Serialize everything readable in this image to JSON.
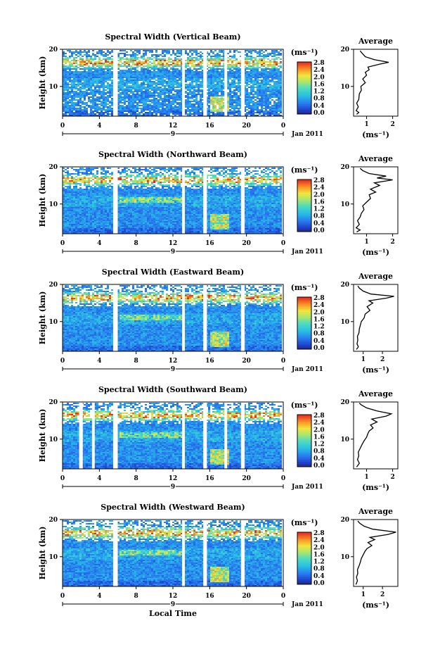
{
  "chart_data": [
    {
      "type": "heatmap",
      "title": "Spectral Width (Vertical Beam)",
      "ylabel": "Height (km)",
      "ylim": [
        2,
        20
      ],
      "xlim": [
        0,
        24
      ],
      "x_ticks": [
        "0",
        "4",
        "8",
        "12",
        "16",
        "20",
        "0"
      ],
      "y_ticks": [
        "10",
        "20"
      ],
      "date_day": "9",
      "date_label": "Jan 2011",
      "colorbar": {
        "unit": "(ms⁻¹)",
        "ticks": [
          "0.0",
          "0.4",
          "0.8",
          "1.2",
          "1.6",
          "2.0",
          "2.4",
          "2.8"
        ]
      },
      "gaps_hours": [
        [
          5.5,
          6.0
        ],
        [
          13.0,
          13.3
        ],
        [
          15.3,
          15.7
        ],
        [
          17.6,
          17.9
        ],
        [
          19.4,
          19.8
        ]
      ],
      "average_profile": {
        "title": "Average",
        "xlabel": "(ms⁻¹)",
        "x_ticks": [
          "1",
          "2"
        ],
        "y_ticks": [
          "10",
          "20"
        ],
        "xlim": [
          0.5,
          2.2
        ],
        "points": [
          [
            0.62,
            2.5
          ],
          [
            0.7,
            3.0
          ],
          [
            0.6,
            3.5
          ],
          [
            0.68,
            4.5
          ],
          [
            0.62,
            5.5
          ],
          [
            0.7,
            6.5
          ],
          [
            0.72,
            8.0
          ],
          [
            0.8,
            9.0
          ],
          [
            0.78,
            10.0
          ],
          [
            0.95,
            11.0
          ],
          [
            0.85,
            12.0
          ],
          [
            1.0,
            13.0
          ],
          [
            0.95,
            13.8
          ],
          [
            1.1,
            14.5
          ],
          [
            1.05,
            15.2
          ],
          [
            1.5,
            16.0
          ],
          [
            1.85,
            16.5
          ],
          [
            1.3,
            17.2
          ],
          [
            0.95,
            18.0
          ],
          [
            0.82,
            19.0
          ],
          [
            0.75,
            19.6
          ]
        ]
      }
    },
    {
      "type": "heatmap",
      "title": "Spectral Width (Northward Beam)",
      "ylabel": "Height (km)",
      "ylim": [
        2,
        20
      ],
      "xlim": [
        0,
        24
      ],
      "x_ticks": [
        "0",
        "4",
        "8",
        "12",
        "16",
        "20",
        "0"
      ],
      "y_ticks": [
        "10",
        "20"
      ],
      "date_day": "9",
      "date_label": "Jan 2011",
      "colorbar": {
        "unit": "(ms⁻¹)",
        "ticks": [
          "0.0",
          "0.4",
          "0.8",
          "1.2",
          "1.6",
          "2.0",
          "2.4",
          "2.8"
        ]
      },
      "gaps_hours": [
        [
          5.5,
          6.0
        ],
        [
          13.0,
          13.3
        ],
        [
          15.3,
          15.7
        ],
        [
          19.4,
          19.8
        ]
      ],
      "average_profile": {
        "title": "Average",
        "xlabel": "(ms⁻¹)",
        "x_ticks": [
          "1",
          "2"
        ],
        "y_ticks": [
          "10",
          "20"
        ],
        "xlim": [
          0.5,
          2.2
        ],
        "points": [
          [
            0.62,
            2.5
          ],
          [
            0.75,
            3.0
          ],
          [
            0.6,
            3.6
          ],
          [
            0.72,
            4.5
          ],
          [
            0.65,
            5.5
          ],
          [
            0.75,
            6.5
          ],
          [
            0.8,
            7.5
          ],
          [
            0.9,
            8.5
          ],
          [
            0.85,
            9.5
          ],
          [
            1.0,
            10.5
          ],
          [
            1.15,
            11.5
          ],
          [
            1.1,
            12.5
          ],
          [
            1.35,
            13.2
          ],
          [
            1.15,
            14.0
          ],
          [
            1.5,
            15.0
          ],
          [
            1.3,
            15.7
          ],
          [
            2.0,
            16.5
          ],
          [
            1.4,
            17.0
          ],
          [
            1.75,
            17.5
          ],
          [
            1.1,
            18.2
          ],
          [
            0.85,
            19.0
          ],
          [
            0.75,
            19.6
          ]
        ]
      }
    },
    {
      "type": "heatmap",
      "title": "Spectral Width (Eastward Beam)",
      "ylabel": "Height (km)",
      "ylim": [
        2,
        20
      ],
      "xlim": [
        0,
        24
      ],
      "x_ticks": [
        "0",
        "4",
        "8",
        "12",
        "16",
        "20",
        "0"
      ],
      "y_ticks": [
        "10",
        "20"
      ],
      "date_day": "9",
      "date_label": "Jan 2011",
      "colorbar": {
        "unit": "(ms⁻¹)",
        "ticks": [
          "0.0",
          "0.4",
          "0.8",
          "1.2",
          "1.6",
          "2.0",
          "2.4",
          "2.8"
        ]
      },
      "gaps_hours": [
        [
          5.5,
          6.0
        ],
        [
          13.0,
          13.3
        ],
        [
          15.3,
          15.7
        ],
        [
          19.4,
          19.8
        ]
      ],
      "average_profile": {
        "title": "Average",
        "xlabel": "(ms⁻¹)",
        "x_ticks": [
          "1",
          "2"
        ],
        "y_ticks": [
          "10",
          "20"
        ],
        "xlim": [
          0.5,
          2.8
        ],
        "points": [
          [
            0.65,
            2.5
          ],
          [
            0.75,
            3.2
          ],
          [
            0.68,
            4.0
          ],
          [
            0.72,
            5.0
          ],
          [
            0.7,
            6.0
          ],
          [
            0.78,
            7.0
          ],
          [
            0.8,
            8.0
          ],
          [
            0.85,
            9.0
          ],
          [
            0.9,
            10.0
          ],
          [
            1.05,
            11.0
          ],
          [
            1.1,
            12.0
          ],
          [
            1.35,
            13.0
          ],
          [
            1.2,
            14.0
          ],
          [
            1.5,
            15.0
          ],
          [
            1.3,
            15.6
          ],
          [
            2.2,
            16.3
          ],
          [
            2.6,
            16.8
          ],
          [
            1.4,
            17.4
          ],
          [
            1.0,
            18.2
          ],
          [
            0.8,
            19.0
          ],
          [
            0.72,
            19.6
          ]
        ]
      }
    },
    {
      "type": "heatmap",
      "title": "Spectral Width (Southward Beam)",
      "ylabel": "Height (km)",
      "ylim": [
        2,
        20
      ],
      "xlim": [
        0,
        24
      ],
      "x_ticks": [
        "0",
        "4",
        "8",
        "12",
        "16",
        "20",
        "0"
      ],
      "y_ticks": [
        "10",
        "20"
      ],
      "date_day": "9",
      "date_label": "Jan 2011",
      "colorbar": {
        "unit": "(ms⁻¹)",
        "ticks": [
          "0.0",
          "0.4",
          "0.8",
          "1.2",
          "1.6",
          "2.0",
          "2.4",
          "2.8"
        ]
      },
      "gaps_hours": [
        [
          1.8,
          2.2
        ],
        [
          3.2,
          3.5
        ],
        [
          5.5,
          6.0
        ],
        [
          13.0,
          13.3
        ],
        [
          15.3,
          15.7
        ],
        [
          17.6,
          17.9
        ],
        [
          19.4,
          19.8
        ]
      ],
      "average_profile": {
        "title": "Average",
        "xlabel": "(ms⁻¹)",
        "x_ticks": [
          "1",
          "2"
        ],
        "y_ticks": [
          "10",
          "20"
        ],
        "xlim": [
          0.5,
          2.2
        ],
        "points": [
          [
            0.62,
            2.5
          ],
          [
            0.72,
            3.5
          ],
          [
            0.65,
            4.5
          ],
          [
            0.7,
            5.5
          ],
          [
            0.68,
            6.5
          ],
          [
            0.75,
            7.5
          ],
          [
            0.82,
            8.5
          ],
          [
            0.9,
            9.5
          ],
          [
            1.0,
            10.5
          ],
          [
            1.05,
            11.5
          ],
          [
            1.1,
            12.2
          ],
          [
            1.25,
            13.0
          ],
          [
            1.15,
            13.8
          ],
          [
            1.4,
            14.6
          ],
          [
            1.2,
            15.4
          ],
          [
            1.75,
            16.2
          ],
          [
            1.95,
            16.8
          ],
          [
            1.4,
            17.6
          ],
          [
            1.0,
            18.4
          ],
          [
            0.8,
            19.2
          ],
          [
            0.72,
            19.7
          ]
        ]
      }
    },
    {
      "type": "heatmap",
      "title": "Spectral Width (Westward Beam)",
      "ylabel": "Height (km)",
      "xlabel": "Local Time",
      "ylim": [
        2,
        20
      ],
      "xlim": [
        0,
        24
      ],
      "x_ticks": [
        "0",
        "4",
        "8",
        "12",
        "16",
        "20",
        "0"
      ],
      "y_ticks": [
        "10",
        "20"
      ],
      "date_day": "9",
      "date_label": "Jan 2011",
      "colorbar": {
        "unit": "(ms⁻¹)",
        "ticks": [
          "0.0",
          "0.4",
          "0.8",
          "1.2",
          "1.6",
          "2.0",
          "2.4",
          "2.8"
        ]
      },
      "gaps_hours": [
        [
          5.5,
          6.0
        ],
        [
          13.0,
          13.3
        ],
        [
          15.3,
          15.7
        ],
        [
          19.4,
          19.8
        ]
      ],
      "average_profile": {
        "title": "Average",
        "xlabel": "(ms⁻¹)",
        "x_ticks": [
          "1",
          "2"
        ],
        "y_ticks": [
          "10",
          "20"
        ],
        "xlim": [
          0.5,
          2.8
        ],
        "points": [
          [
            0.62,
            2.5
          ],
          [
            0.7,
            3.5
          ],
          [
            0.65,
            4.5
          ],
          [
            0.72,
            5.5
          ],
          [
            0.7,
            6.5
          ],
          [
            0.78,
            7.5
          ],
          [
            0.85,
            8.5
          ],
          [
            0.9,
            9.5
          ],
          [
            1.0,
            10.5
          ],
          [
            1.1,
            11.5
          ],
          [
            1.2,
            12.2
          ],
          [
            1.45,
            13.0
          ],
          [
            1.25,
            13.8
          ],
          [
            1.6,
            14.6
          ],
          [
            1.35,
            15.2
          ],
          [
            2.3,
            16.0
          ],
          [
            2.7,
            16.6
          ],
          [
            1.5,
            17.4
          ],
          [
            1.05,
            18.2
          ],
          [
            0.82,
            19.0
          ],
          [
            0.72,
            19.6
          ]
        ]
      }
    }
  ]
}
